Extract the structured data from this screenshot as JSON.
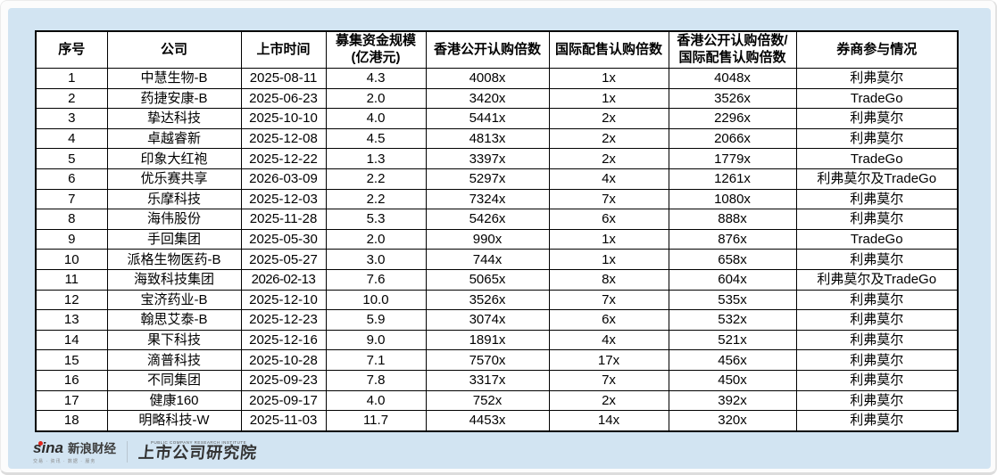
{
  "page": {
    "panel_color": "#d2e4f2"
  },
  "chart_data": {
    "type": "table",
    "columns": [
      "序号",
      "公司",
      "上市时间",
      "募集资金规模\n(亿港元)",
      "香港公开认购倍数",
      "国际配售认购倍数",
      "香港公开认购倍数/\n国际配售认购倍数",
      "券商参与情况"
    ],
    "rows": [
      [
        "1",
        "中慧生物-B",
        "2025-08-11",
        "4.3",
        "4008x",
        "1x",
        "4048x",
        "利弗莫尔"
      ],
      [
        "2",
        "药捷安康-B",
        "2025-06-23",
        "2.0",
        "3420x",
        "1x",
        "3526x",
        "TradeGo"
      ],
      [
        "3",
        "挚达科技",
        "2025-10-10",
        "4.0",
        "5441x",
        "2x",
        "2296x",
        "利弗莫尔"
      ],
      [
        "4",
        "卓越睿新",
        "2025-12-08",
        "4.5",
        "4813x",
        "2x",
        "2066x",
        "利弗莫尔"
      ],
      [
        "5",
        "印象大红袍",
        "2025-12-22",
        "1.3",
        "3397x",
        "2x",
        "1779x",
        "TradeGo"
      ],
      [
        "6",
        "优乐赛共享",
        "2026-03-09",
        "2.2",
        "5297x",
        "4x",
        "1261x",
        "利弗莫尔及TradeGo"
      ],
      [
        "7",
        "乐摩科技",
        "2025-12-03",
        "2.2",
        "7324x",
        "7x",
        "1080x",
        "利弗莫尔"
      ],
      [
        "8",
        "海伟股份",
        "2025-11-28",
        "5.3",
        "5426x",
        "6x",
        "888x",
        "利弗莫尔"
      ],
      [
        "9",
        "手回集团",
        "2025-05-30",
        "2.0",
        "990x",
        "1x",
        "876x",
        "TradeGo"
      ],
      [
        "10",
        "派格生物医药-B",
        "2025-05-27",
        "3.0",
        "744x",
        "1x",
        "658x",
        "利弗莫尔"
      ],
      [
        "11",
        "海致科技集团",
        "2026-02-13",
        "7.6",
        "5065x",
        "8x",
        "604x",
        "利弗莫尔及TradeGo"
      ],
      [
        "12",
        "宝济药业-B",
        "2025-12-10",
        "10.0",
        "3526x",
        "7x",
        "535x",
        "利弗莫尔"
      ],
      [
        "13",
        "翰思艾泰-B",
        "2025-12-23",
        "5.9",
        "3074x",
        "6x",
        "532x",
        "利弗莫尔"
      ],
      [
        "14",
        "果下科技",
        "2025-12-16",
        "9.0",
        "1891x",
        "4x",
        "521x",
        "利弗莫尔"
      ],
      [
        "15",
        "滴普科技",
        "2025-10-28",
        "7.1",
        "7570x",
        "17x",
        "456x",
        "利弗莫尔"
      ],
      [
        "16",
        "不同集团",
        "2025-09-23",
        "7.8",
        "3317x",
        "7x",
        "450x",
        "利弗莫尔"
      ],
      [
        "17",
        "健康160",
        "2025-09-17",
        "4.0",
        "752x",
        "2x",
        "392x",
        "利弗莫尔"
      ],
      [
        "18",
        "明略科技-W",
        "2025-11-03",
        "11.7",
        "4453x",
        "14x",
        "320x",
        "利弗莫尔"
      ]
    ]
  },
  "footer": {
    "sina_logo_text": "sina",
    "sina_brand": "新浪财经",
    "sina_tagline": "交易 · 资讯 · 数据 · 服务",
    "institute_caption": "PUBLIC COMPANY RESEARCH INSTITUTE",
    "institute_name": "上市公司研究院",
    "accent_red": "#e2231a"
  }
}
